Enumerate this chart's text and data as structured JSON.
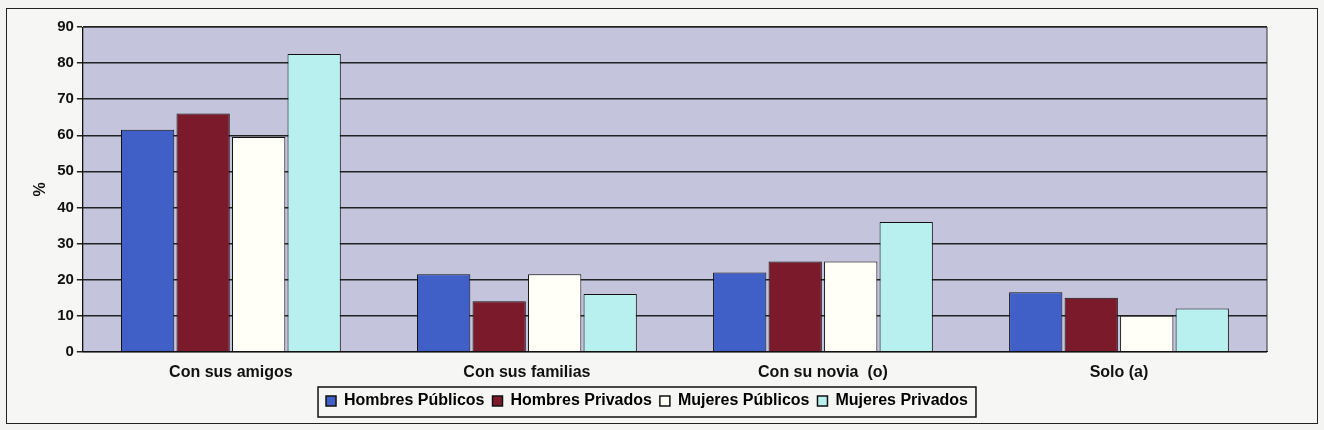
{
  "chart_data": {
    "type": "bar",
    "ylabel": "%",
    "categories": [
      "Con sus amigos",
      "Con sus familias",
      "Con su novia  (o)",
      "Solo (a)"
    ],
    "series": [
      {
        "name": "Hombres Públicos",
        "color": "#4060c8",
        "values": [
          61.5,
          21.5,
          22,
          16.5
        ]
      },
      {
        "name": "Hombres Privados",
        "color": "#7a1a2a",
        "values": [
          66,
          14,
          25,
          15
        ]
      },
      {
        "name": "Mujeres Públicos",
        "color": "#fffff8",
        "values": [
          59.5,
          21.5,
          25,
          10
        ]
      },
      {
        "name": "Mujeres Privados",
        "color": "#b8f0f0",
        "values": [
          82.5,
          16,
          36,
          12
        ]
      }
    ],
    "ylim": [
      0,
      90
    ],
    "yticks": [
      0,
      10,
      20,
      30,
      40,
      50,
      60,
      70,
      80,
      90
    ],
    "grid": "y",
    "legend": "bottom"
  }
}
